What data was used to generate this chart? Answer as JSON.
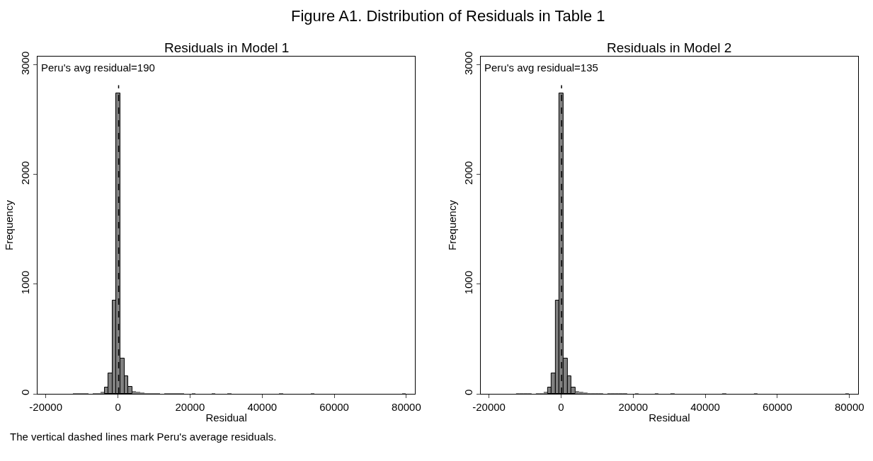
{
  "chart_data": [
    {
      "type": "histogram",
      "title": "Residuals in Model 1",
      "xlabel": "Residual",
      "ylabel": "Frequency",
      "color": "#808080",
      "bins": [
        -12540,
        -11440,
        -10340,
        -9240,
        -8140,
        -7040,
        -5940,
        -4840,
        -3740,
        -2640,
        -1540,
        -440,
        660,
        1760,
        2860,
        3960,
        5060,
        6160,
        7260,
        8360,
        9460,
        10560,
        11660,
        12760,
        13860,
        14960,
        16060,
        17160,
        18260,
        19360,
        20460,
        21560,
        22660,
        23760,
        24860,
        25960,
        27060,
        28160,
        29260,
        30360,
        31460,
        32560,
        33660,
        34760,
        35860,
        36960,
        38060,
        39160,
        40260,
        41360,
        42460,
        43560,
        44660,
        45760,
        46860,
        47960,
        49060,
        50160,
        51260,
        52360,
        53460,
        54560,
        55660,
        56760,
        57860,
        58960,
        60060,
        61160,
        62260,
        63360,
        64460,
        65560,
        66660,
        67760,
        68860,
        69960,
        71060,
        72160,
        73260,
        74360,
        75460,
        76560,
        77660,
        78760,
        79860,
        80960
      ],
      "values": [
        1,
        2,
        1,
        1,
        0,
        2,
        3,
        17,
        60,
        185,
        850,
        2740,
        324,
        163,
        65,
        29,
        22,
        8,
        3,
        2,
        2,
        1,
        0,
        1,
        2,
        2,
        1,
        1,
        0,
        0,
        1,
        0,
        0,
        0,
        0,
        1,
        0,
        0,
        0,
        1,
        0,
        0,
        0,
        0,
        0,
        0,
        0,
        0,
        0,
        0,
        0,
        0,
        1,
        0,
        0,
        0,
        0,
        0,
        0,
        0,
        1,
        0,
        0,
        0,
        0,
        0,
        0,
        0,
        0,
        0,
        0,
        0,
        0,
        0,
        0,
        0,
        0,
        0,
        0,
        0,
        0,
        0,
        0,
        1,
        0
      ],
      "xlim": [
        -22300,
        82400
      ],
      "ylim": [
        0,
        3075
      ],
      "xticks": [
        -20000,
        0,
        20000,
        40000,
        60000,
        80000
      ],
      "yticks": [
        0,
        1000,
        2000,
        3000
      ],
      "ref_lines": [
        {
          "axis": "x",
          "value": 190,
          "label": "Peru's avg residual=190",
          "line_style": "dashed",
          "color": "#000000"
        }
      ],
      "annotations": [
        "Figure A1. Distribution of Residuals in Table 1",
        "The vertical dashed lines mark Peru's average residuals."
      ]
    },
    {
      "type": "histogram",
      "title": "Residuals in Model 2",
      "xlabel": "Residual",
      "ylabel": "Frequency",
      "color": "#808080",
      "bins": [
        -12540,
        -11440,
        -10340,
        -9240,
        -8140,
        -7040,
        -5940,
        -4840,
        -3740,
        -2640,
        -1540,
        -440,
        660,
        1760,
        2860,
        3960,
        5060,
        6160,
        7260,
        8360,
        9460,
        10560,
        11660,
        12760,
        13860,
        14960,
        16060,
        17160,
        18260,
        19360,
        20460,
        21560,
        22660,
        23760,
        24860,
        25960,
        27060,
        28160,
        29260,
        30360,
        31460,
        32560,
        33660,
        34760,
        35860,
        36960,
        38060,
        39160,
        40260,
        41360,
        42460,
        43560,
        44660,
        45760,
        46860,
        47960,
        49060,
        50160,
        51260,
        52360,
        53460,
        54560,
        55660,
        56760,
        57860,
        58960,
        60060,
        61160,
        62260,
        63360,
        64460,
        65560,
        66660,
        67760,
        68860,
        69960,
        71060,
        72160,
        73260,
        74360,
        75460,
        76560,
        77660,
        78760,
        79860,
        80960
      ],
      "values": [
        1,
        2,
        1,
        1,
        0,
        2,
        3,
        17,
        60,
        190,
        850,
        2740,
        324,
        163,
        60,
        29,
        20,
        8,
        3,
        2,
        2,
        1,
        0,
        1,
        2,
        2,
        1,
        1,
        0,
        0,
        1,
        0,
        0,
        0,
        0,
        1,
        0,
        0,
        0,
        1,
        0,
        0,
        0,
        0,
        0,
        0,
        0,
        0,
        0,
        0,
        0,
        0,
        1,
        0,
        0,
        0,
        0,
        0,
        0,
        0,
        1,
        0,
        0,
        0,
        0,
        0,
        0,
        0,
        0,
        0,
        0,
        0,
        0,
        0,
        0,
        0,
        0,
        0,
        0,
        0,
        0,
        0,
        0,
        1,
        0
      ],
      "xlim": [
        -22300,
        82400
      ],
      "ylim": [
        0,
        3075
      ],
      "xticks": [
        -20000,
        0,
        20000,
        40000,
        60000,
        80000
      ],
      "yticks": [
        0,
        1000,
        2000,
        3000
      ],
      "ref_lines": [
        {
          "axis": "x",
          "value": 135,
          "label": "Peru's avg residual=135",
          "line_style": "dashed",
          "color": "#000000"
        }
      ]
    }
  ]
}
